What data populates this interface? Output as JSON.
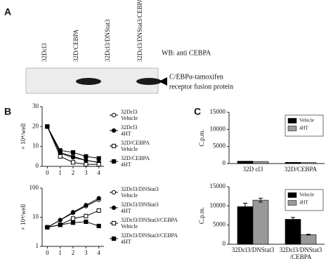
{
  "panels": [
    "A",
    "B",
    "C"
  ],
  "blot": {
    "lanes": [
      "32Dcl3",
      "32D/CEBPA",
      "32Dcl3/DNStat3",
      "32Dcl3/DNStat3/CEBPA"
    ],
    "antibody": "WB: anti CEBPA",
    "marker_label_lines": [
      "C/EBPα-tamoxifen",
      "receptor fusion protein"
    ]
  },
  "chart_data": [
    {
      "type": "line",
      "ylabel": "× 10⁴/well",
      "x": [
        0,
        1,
        2,
        3,
        4
      ],
      "xlim": [
        -0.4,
        4.4
      ],
      "xticks": [
        0,
        1,
        2,
        3,
        4
      ],
      "ylim": [
        0,
        30
      ],
      "yticks": [
        0,
        10,
        20,
        30
      ],
      "log_y": false,
      "series": [
        {
          "name": "32Dcl3 Vehicle",
          "color": "#000000",
          "marker": "circle-open",
          "values": [
            20,
            7,
            5,
            3,
            2
          ]
        },
        {
          "name": "32Dcl3 4HT",
          "color": "#000000",
          "marker": "circle-filled",
          "values": [
            20,
            6.5,
            4.5,
            3,
            2
          ]
        },
        {
          "name": "32D/CEBPA Vehicle",
          "color": "#000000",
          "marker": "square-open",
          "values": [
            20,
            5,
            2,
            1,
            1
          ]
        },
        {
          "name": "32D/CEBPA 4HT",
          "color": "#000000",
          "marker": "square-filled",
          "values": [
            20,
            8,
            7,
            5,
            4
          ]
        }
      ]
    },
    {
      "type": "line",
      "ylabel": "× 10⁴/well",
      "x": [
        0,
        1,
        2,
        3,
        4
      ],
      "xlim": [
        -0.4,
        4.4
      ],
      "xticks": [
        0,
        1,
        2,
        3,
        4
      ],
      "ylim": [
        1,
        100
      ],
      "yticks": [
        1,
        10,
        100
      ],
      "log_y": true,
      "series": [
        {
          "name": "32Dcl3/DNStat3 Vehicle",
          "color": "#000000",
          "marker": "circle-open",
          "values": [
            4.5,
            8,
            14,
            24,
            40
          ]
        },
        {
          "name": "32Dcl3/DNStat3 4HT",
          "color": "#000000",
          "marker": "circle-filled",
          "values": [
            4.5,
            8,
            15,
            26,
            45
          ]
        },
        {
          "name": "32Dcl3/DNStat3/CEBPA Vehicle",
          "color": "#000000",
          "marker": "square-open",
          "values": [
            4.5,
            5.5,
            9,
            11,
            17
          ]
        },
        {
          "name": "32Dcl3/DNStat3/CEBPA 4HT",
          "color": "#000000",
          "marker": "square-filled",
          "values": [
            4.5,
            5.5,
            6.5,
            7,
            5
          ]
        }
      ]
    },
    {
      "type": "bar",
      "ylabel": "C.p.m.",
      "categories": [
        "32D cl3",
        "32D/CEBPA"
      ],
      "ylim": [
        0,
        15000
      ],
      "yticks": [
        0,
        5000,
        10000,
        15000
      ],
      "legend": "upper right",
      "series": [
        {
          "name": "Vehicle",
          "color": "#000000",
          "values": [
            700,
            350
          ]
        },
        {
          "name": "4HT",
          "color": "#999999",
          "values": [
            600,
            300
          ]
        }
      ]
    },
    {
      "type": "bar",
      "ylabel": "C.p.m.",
      "categories": [
        "32Dcl3/DNStat3",
        "32Dcl3/DNStat3/CEBPA"
      ],
      "ylim": [
        0,
        15000
      ],
      "yticks": [
        0,
        5000,
        10000,
        15000
      ],
      "legend": "upper right",
      "series": [
        {
          "name": "Vehicle",
          "color": "#000000",
          "values": [
            9800,
            6500
          ],
          "errors": [
            900,
            500
          ]
        },
        {
          "name": "4HT",
          "color": "#999999",
          "values": [
            11500,
            2500
          ],
          "errors": [
            500,
            100
          ]
        }
      ]
    }
  ]
}
